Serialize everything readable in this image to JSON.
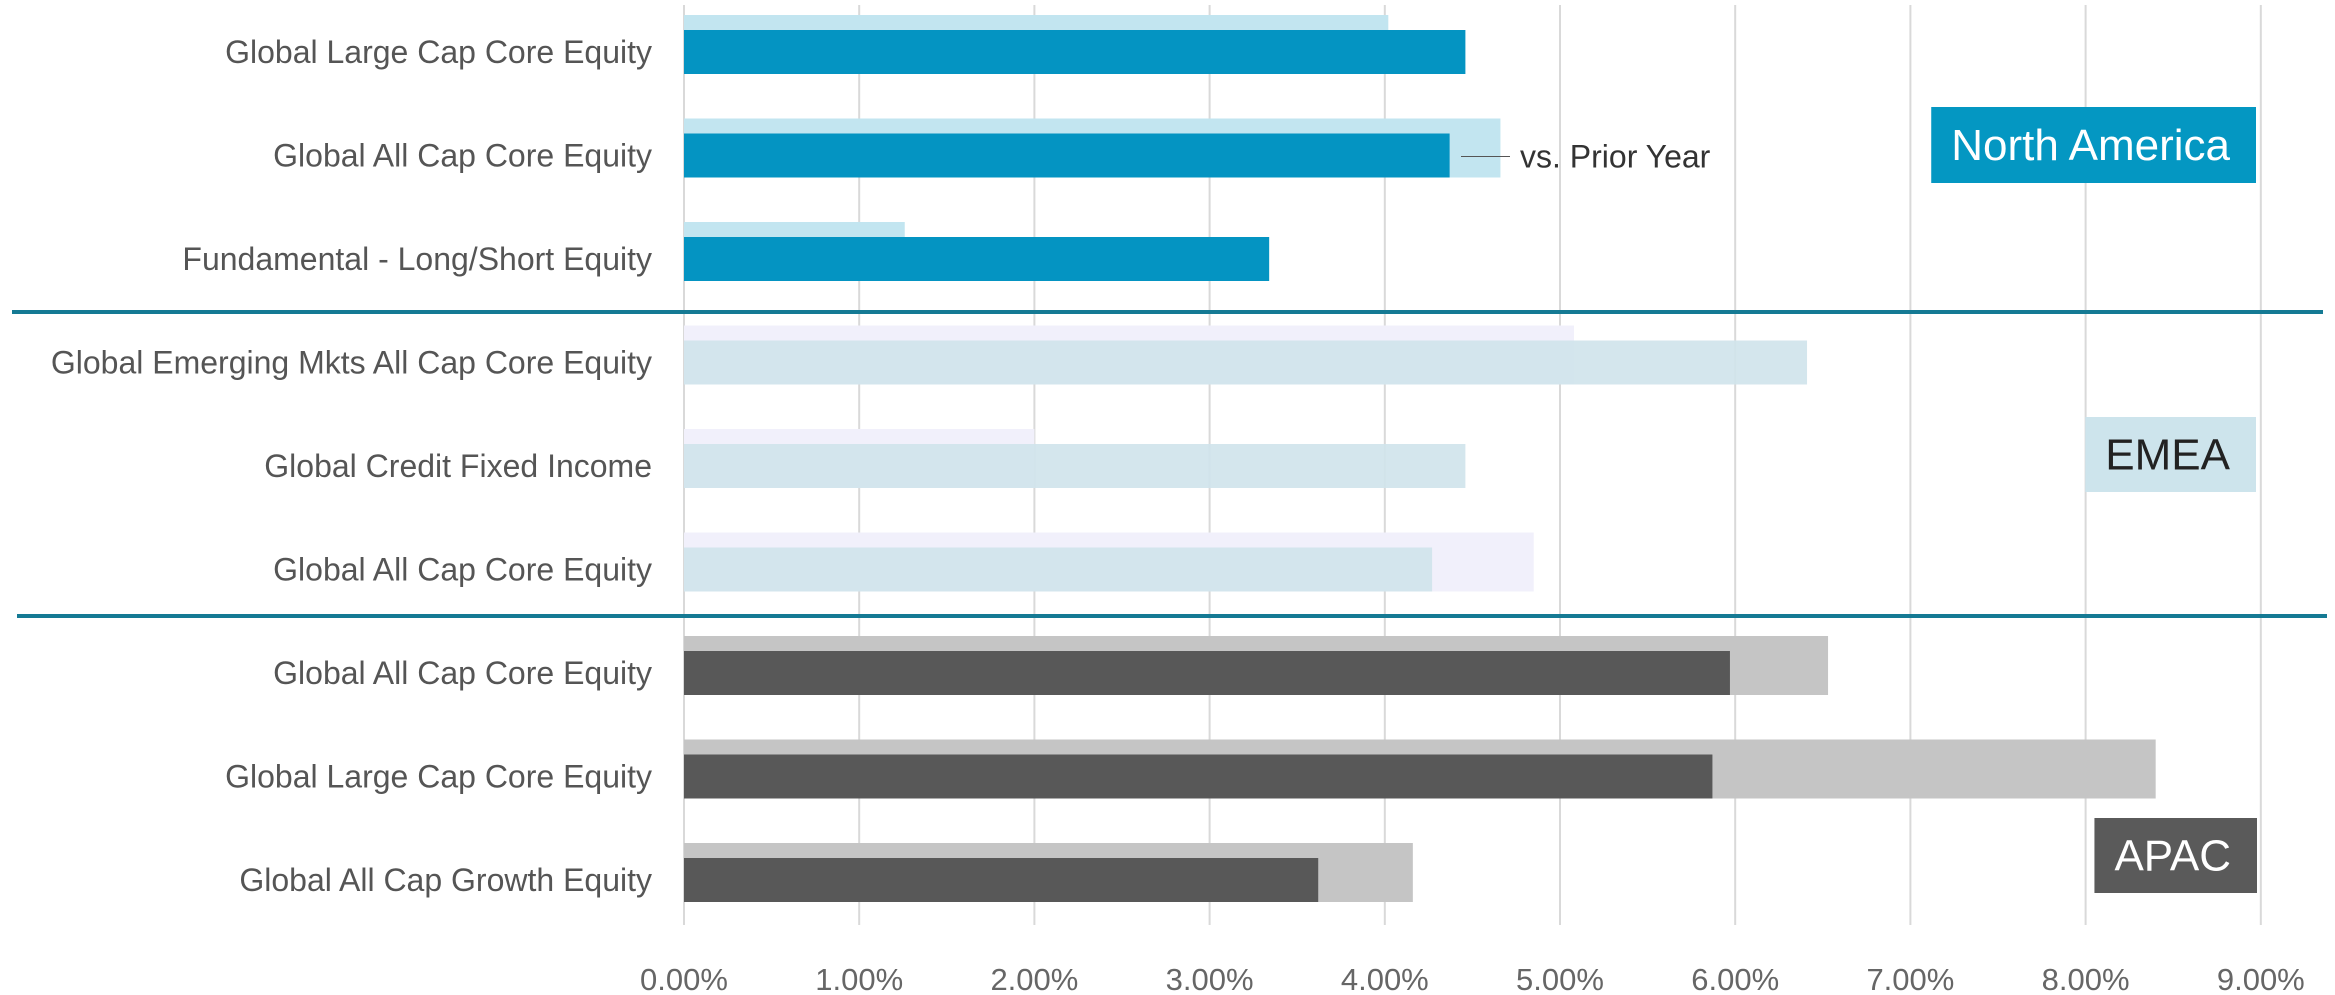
{
  "chart_data": {
    "type": "bar",
    "orientation": "horizontal",
    "xlim": [
      0,
      9
    ],
    "x_ticks": [
      "0.00%",
      "1.00%",
      "2.00%",
      "3.00%",
      "4.00%",
      "5.00%",
      "6.00%",
      "7.00%",
      "8.00%",
      "9.00%"
    ],
    "grid": "vertical",
    "annotation": "vs. Prior Year",
    "groups": [
      {
        "region": "North America",
        "label_color": "#ffffff",
        "box_color": "#0497c2",
        "current_color": "#0494c2",
        "prior_color": "#c2e5f0",
        "categories": [
          {
            "name": "Global Large Cap Core Equity",
            "current": 4.46,
            "prior": 4.02
          },
          {
            "name": "Global All Cap Core Equity",
            "current": 4.37,
            "prior": 4.66
          },
          {
            "name": "Fundamental - Long/Short Equity",
            "current": 3.34,
            "prior": 1.26
          }
        ]
      },
      {
        "region": "EMEA",
        "label_color": "#222222",
        "box_color": "#cde4ec",
        "current_color": "#cfe3eb",
        "prior_color": "#f1f0fb",
        "categories": [
          {
            "name": "Global Emerging Mkts All Cap Core Equity",
            "current": 6.41,
            "prior": 5.08
          },
          {
            "name": "Global Credit Fixed Income",
            "current": 4.46,
            "prior": 2.0
          },
          {
            "name": "Global All Cap Core Equity",
            "current": 4.27,
            "prior": 4.85
          }
        ]
      },
      {
        "region": "APAC",
        "label_color": "#ffffff",
        "box_color": "#5a5a5a",
        "current_color": "#585858",
        "prior_color": "#c5c5c5",
        "categories": [
          {
            "name": "Global All Cap Core Equity",
            "current": 5.97,
            "prior": 6.53
          },
          {
            "name": "Global Large Cap Core Equity",
            "current": 5.87,
            "prior": 8.4
          },
          {
            "name": "Global All Cap Growth Equity",
            "current": 3.62,
            "prior": 4.16
          }
        ]
      }
    ],
    "separator_color": "#157a94",
    "grid_color": "#d9d9d9"
  }
}
